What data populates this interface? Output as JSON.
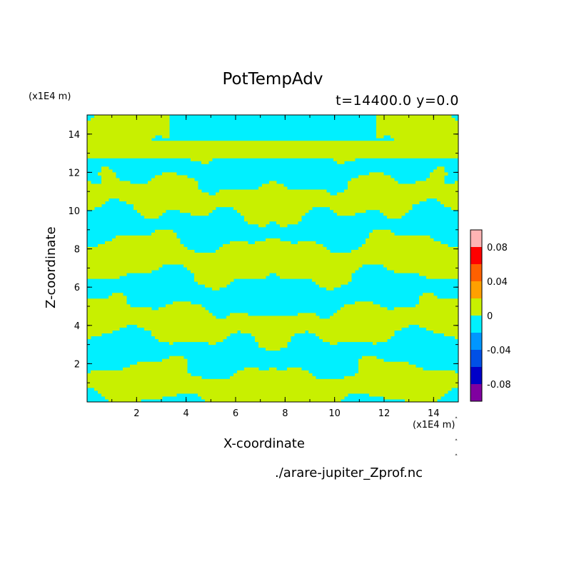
{
  "chart_data": {
    "type": "heatmap",
    "title": "PotTempAdv",
    "subtitle": "t=14400.0 y=0.0",
    "xlabel": "X-coordinate",
    "ylabel": "Z-coordinate",
    "x_unit": "(x1E4 m)",
    "y_unit": "(x1E4 m)",
    "xlim": [
      0,
      15
    ],
    "ylim": [
      0,
      15
    ],
    "xticks": [
      "2",
      "4",
      "6",
      "8",
      "10",
      "12",
      "14"
    ],
    "yticks": [
      "2",
      "4",
      "6",
      "8",
      "10",
      "12",
      "14"
    ],
    "colorbar": {
      "levels": [
        -0.1,
        -0.08,
        -0.06,
        -0.04,
        -0.02,
        0,
        0.02,
        0.04,
        0.06,
        0.08,
        0.1
      ],
      "colors": [
        "#8000a0",
        "#0000c8",
        "#0050e6",
        "#0096ff",
        "#00f0ff",
        "#c8f000",
        "#ffa000",
        "#ff6000",
        "#ff0000",
        "#ffb4b4"
      ],
      "tick_labels": [
        "0.08",
        "0.04",
        "0",
        "-0.04",
        "-0.08"
      ],
      "tick_values": [
        0.08,
        0.04,
        0,
        -0.04,
        -0.08
      ]
    },
    "field_note_values": [
      -0.02,
      0.02
    ]
  },
  "source": "./arare-jupiter_Zprof.nc"
}
